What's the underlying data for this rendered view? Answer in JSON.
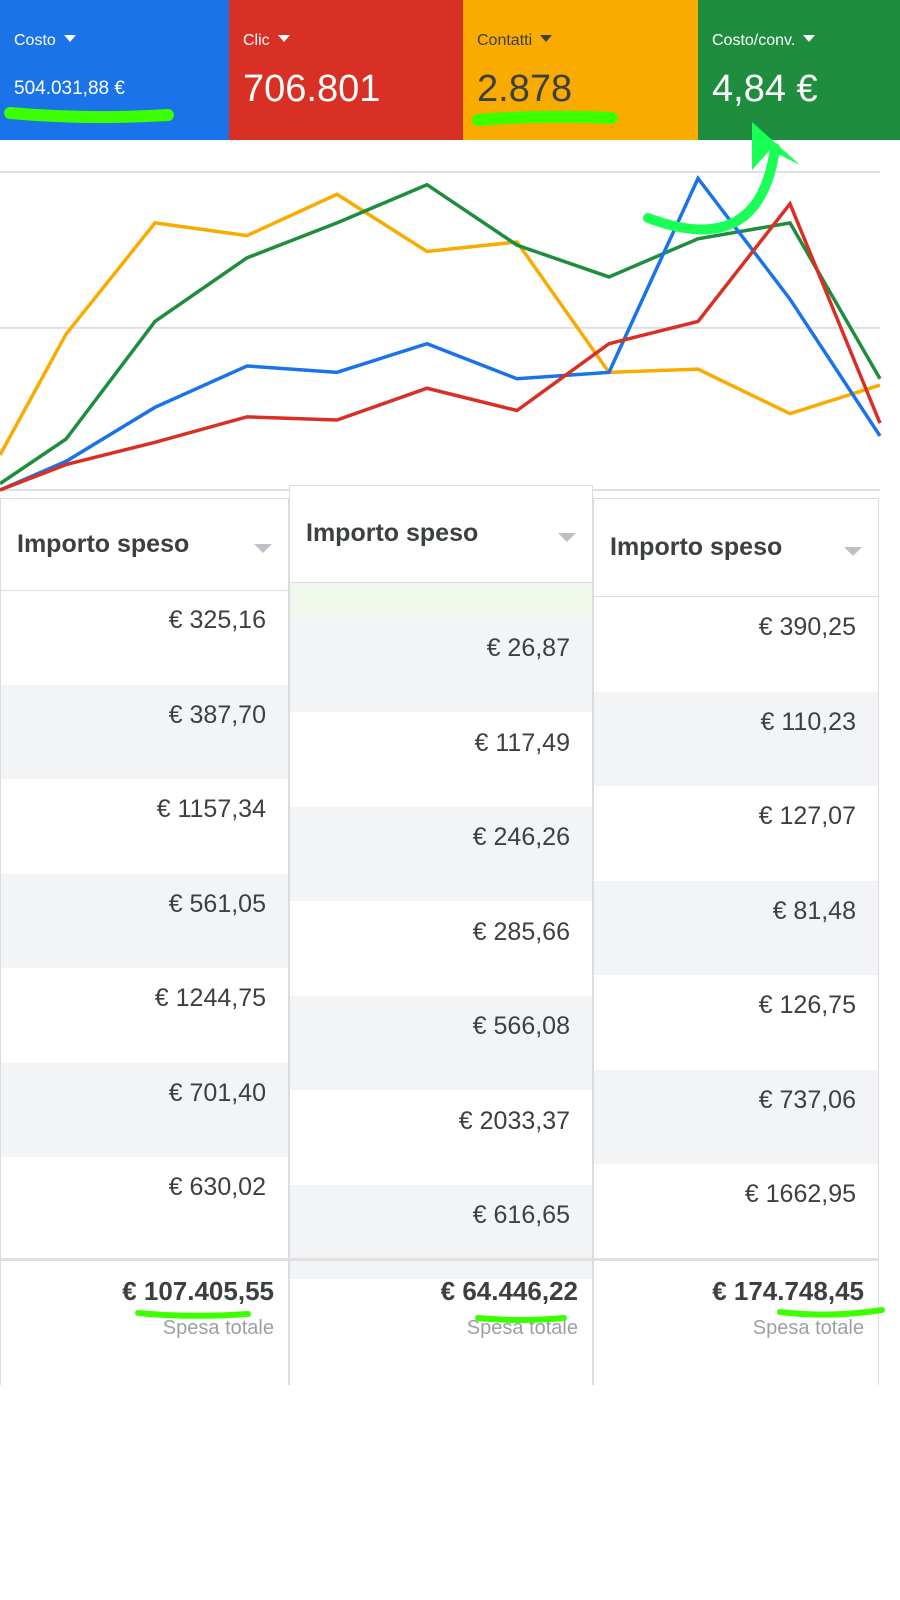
{
  "metrics": [
    {
      "label": "Costo",
      "value": "504.031,88 €",
      "color": "#1a73e8"
    },
    {
      "label": "Clic",
      "value": "706.801",
      "color": "#d93025"
    },
    {
      "label": "Contatti",
      "value": "2.878",
      "color": "#f9ab00"
    },
    {
      "label": "Costo/conv.",
      "value": "4,84 €",
      "color": "#1e8e3e"
    }
  ],
  "chart_data": {
    "type": "line",
    "title": "",
    "xlabel": "",
    "ylabel": "",
    "ylim": [
      0,
      100
    ],
    "x": [
      0,
      1,
      2,
      3,
      4,
      5,
      6,
      7,
      8,
      9,
      10
    ],
    "series": [
      {
        "name": "Contatti",
        "color": "#f9ab00",
        "values": [
          11,
          49,
          84,
          80,
          93,
          75,
          78,
          37,
          38,
          24,
          33
        ]
      },
      {
        "name": "Costo/conv.",
        "color": "#1e8e3e",
        "values": [
          2,
          16,
          53,
          73,
          84,
          96,
          77,
          67,
          79,
          84,
          35
        ]
      },
      {
        "name": "Costo",
        "color": "#1a73e8",
        "values": [
          0,
          9,
          26,
          39,
          37,
          46,
          35,
          37,
          98,
          60,
          17
        ]
      },
      {
        "name": "Clic",
        "color": "#d93025",
        "values": [
          0,
          8,
          15,
          23,
          22,
          32,
          25,
          46,
          53,
          90,
          21
        ]
      }
    ]
  },
  "tables": [
    {
      "header": "Importo speso",
      "rows": [
        "€ 325,16",
        "€ 387,70",
        "€ 1157,34",
        "€ 561,05",
        "€ 1244,75",
        "€ 701,40",
        "€ 630,02"
      ],
      "total": "€ 107.405,55",
      "total_label": "Spesa totale"
    },
    {
      "header": "Importo speso",
      "rows": [
        "€ 26,87",
        "€ 117,49",
        "€ 246,26",
        "€ 285,66",
        "€ 566,08",
        "€ 2033,37",
        "€ 616,65"
      ],
      "total": "€ 64.446,22",
      "total_label": "Spesa totale"
    },
    {
      "header": "Importo speso",
      "rows": [
        "€ 390,25",
        "€ 110,23",
        "€ 127,07",
        "€ 81,48",
        "€ 126,75",
        "€ 737,06",
        "€ 1662,95"
      ],
      "total": "€ 174.748,45",
      "total_label": "Spesa totale"
    }
  ]
}
